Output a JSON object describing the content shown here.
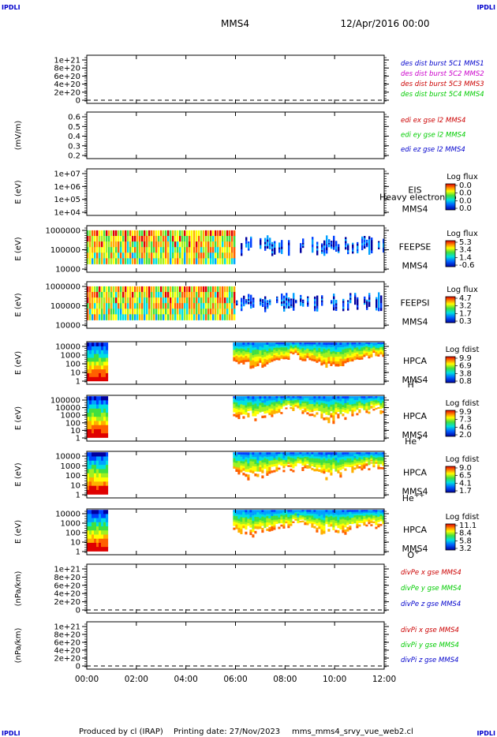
{
  "corner_label": "IPDLI",
  "header": {
    "spacecraft": "MMS4",
    "date_time": "12/Apr/2016 00:00"
  },
  "footer": {
    "produced_by": "Produced by cl (IRAP)",
    "printing_date": "Printing date: 27/Nov/2023",
    "script": "mms_mms4_srvy_vue_web2.cl"
  },
  "colors": {
    "blue": "#0000cc",
    "magenta": "#cc00cc",
    "red": "#cc0000",
    "green": "#00cc00",
    "dash": "#000000"
  },
  "chart_data": {
    "type": "heatmap",
    "x_ticks": [
      "00:00",
      "02:00",
      "04:00",
      "06:00",
      "08:00",
      "10:00",
      "12:00"
    ],
    "x_range_hours": [
      0,
      12
    ],
    "panels": [
      {
        "id": "des-dist",
        "ylabel": "",
        "yticks": [
          "1e+21",
          "8e+20",
          "6e+20",
          "4e+20",
          "2e+20",
          "0"
        ],
        "dashed_zero": true,
        "legend": [
          {
            "text": "des dist burst 5C1 MMS1",
            "color": "blue"
          },
          {
            "text": "des dist burst 5C2 MMS2",
            "color": "magenta"
          },
          {
            "text": "des dist burst 5C3 MMS3",
            "color": "red"
          },
          {
            "text": "des dist burst 5C4 MMS4",
            "color": "green"
          }
        ]
      },
      {
        "id": "edi",
        "ylabel": "(mV/m)",
        "yticks": [
          "0.6",
          "0.5",
          "0.4",
          "0.3",
          "0.2"
        ],
        "dashed_zero": false,
        "legend": [
          {
            "text": "edi ex gse l2 MMS4",
            "color": "red"
          },
          {
            "text": "edi ey gse l2 MMS4",
            "color": "green"
          },
          {
            "text": "edi ez gse l2 MMS4",
            "color": "blue"
          }
        ]
      },
      {
        "id": "eis",
        "ylabel": "E (eV)",
        "yticks": [
          "1e+07",
          "1e+06",
          "1e+05",
          "1e+04"
        ],
        "instrument": [
          "EIS",
          "MMS4"
        ],
        "overlay_text": "Heavy electron to",
        "colorbar": {
          "title": "Log flux",
          "labels": [
            "0.0",
            "0.0",
            "0.0",
            "0.0"
          ]
        }
      },
      {
        "id": "feepse",
        "ylabel": "E (eV)",
        "yticks": [
          "1000000",
          "100000",
          "10000"
        ],
        "instrument": [
          "FEEPSE",
          "MMS4"
        ],
        "colorbar": {
          "title": "Log flux",
          "labels": [
            "5.3",
            "3.4",
            "1.4",
            "-0.6"
          ]
        },
        "activity": [
          [
            0.0,
            12.0
          ]
        ]
      },
      {
        "id": "feepsi",
        "ylabel": "E (eV)",
        "yticks": [
          "1000000",
          "100000",
          "10000"
        ],
        "instrument": [
          "FEEPSI",
          "MMS4"
        ],
        "colorbar": {
          "title": "Log flux",
          "labels": [
            "4.7",
            "3.2",
            "1.7",
            "0.3"
          ]
        },
        "activity": [
          [
            0.0,
            12.0
          ]
        ]
      },
      {
        "id": "hpca-h",
        "ylabel": "E (eV)",
        "yticks": [
          "10000",
          "1000",
          "100",
          "10",
          "1"
        ],
        "instrument": [
          "HPCA",
          "MMS4"
        ],
        "species_base": "H",
        "species_sup": "+",
        "colorbar": {
          "title": "Log fdist",
          "labels": [
            "9.9",
            "6.9",
            "3.8",
            "0.8"
          ]
        },
        "activity": [
          [
            0.0,
            0.8
          ],
          [
            5.9,
            12.0
          ]
        ]
      },
      {
        "id": "hpca-he",
        "ylabel": "E (eV)",
        "yticks": [
          "100000",
          "10000",
          "1000",
          "100",
          "10",
          "1"
        ],
        "instrument": [
          "HPCA",
          "MMS4"
        ],
        "species_base": "He",
        "species_sup": "+",
        "colorbar": {
          "title": "Log fdist",
          "labels": [
            "9.9",
            "7.3",
            "4.6",
            "2.0"
          ]
        },
        "activity": [
          [
            0.0,
            0.8
          ],
          [
            5.9,
            12.0
          ]
        ]
      },
      {
        "id": "hpca-hepp",
        "ylabel": "E (eV)",
        "yticks": [
          "10000",
          "1000",
          "100",
          "10",
          "1"
        ],
        "instrument": [
          "HPCA",
          "MMS4"
        ],
        "species_base": "He",
        "species_sup": "++",
        "colorbar": {
          "title": "Log fdist",
          "labels": [
            "9.0",
            "6.5",
            "4.1",
            "1.7"
          ]
        },
        "activity": [
          [
            0.0,
            0.8
          ],
          [
            5.9,
            12.0
          ]
        ]
      },
      {
        "id": "hpca-o",
        "ylabel": "E (eV)",
        "yticks": [
          "10000",
          "1000",
          "100",
          "10",
          "1"
        ],
        "instrument": [
          "HPCA",
          "MMS4"
        ],
        "species_base": "O",
        "species_sup": "+",
        "colorbar": {
          "title": "Log fdist",
          "labels": [
            "11.1",
            "8.4",
            "5.8",
            "3.2"
          ]
        },
        "activity": [
          [
            0.0,
            0.8
          ],
          [
            5.9,
            12.0
          ]
        ]
      },
      {
        "id": "divpe",
        "ylabel": "(nPa/km)",
        "yticks": [
          "1e+21",
          "8e+20",
          "6e+20",
          "4e+20",
          "2e+20",
          "0"
        ],
        "dashed_zero": true,
        "legend": [
          {
            "text": "divPe x gse MMS4",
            "color": "red"
          },
          {
            "text": "divPe y gse MMS4",
            "color": "green"
          },
          {
            "text": "divPe z gse MMS4",
            "color": "blue"
          }
        ]
      },
      {
        "id": "divpi",
        "ylabel": "(nPa/km)",
        "yticks": [
          "1e+21",
          "8e+20",
          "6e+20",
          "4e+20",
          "2e+20",
          "0"
        ],
        "dashed_zero": true,
        "legend": [
          {
            "text": "divPi x gse MMS4",
            "color": "red"
          },
          {
            "text": "divPi y gse MMS4",
            "color": "green"
          },
          {
            "text": "divPi z gse MMS4",
            "color": "blue"
          }
        ]
      }
    ]
  }
}
